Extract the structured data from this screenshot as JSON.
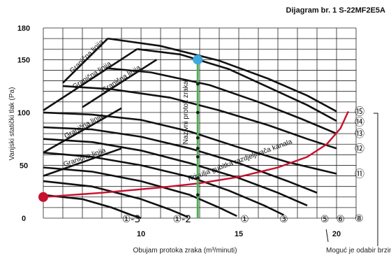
{
  "title": "Dijagram br. 1 S-22MF2E5A",
  "chart_data": {
    "type": "line",
    "xlabel": "Obujam protoka zraka (m³/minuti)",
    "ylabel": "Vanjski statički tlak (Pa)",
    "xlim": [
      5,
      21
    ],
    "ylim": [
      0,
      180
    ],
    "x_ticks": [
      "10",
      "15",
      "20"
    ],
    "y_ticks": [
      "0",
      "50",
      "100",
      "150",
      "180"
    ],
    "grid": true,
    "fan_curves": [
      {
        "label": "⑮",
        "points": [
          [
            8.3,
            170
          ],
          [
            11,
            163
          ],
          [
            14,
            149
          ],
          [
            16.5,
            132
          ],
          [
            18.5,
            116
          ],
          [
            20,
            101
          ]
        ]
      },
      {
        "label": "⑭",
        "points": [
          [
            9.8,
            160
          ],
          [
            12,
            155
          ],
          [
            14.5,
            141
          ],
          [
            16.5,
            124
          ],
          [
            18.5,
            107
          ],
          [
            20,
            92
          ]
        ]
      },
      {
        "label": "⑬",
        "points": [
          [
            8.2,
            142
          ],
          [
            10.5,
            138
          ],
          [
            13.5,
            126
          ],
          [
            16,
            110
          ],
          [
            18.2,
            94
          ],
          [
            20,
            80
          ]
        ]
      },
      {
        "label": "⑫",
        "points": [
          [
            6,
            125
          ],
          [
            8.5,
            122
          ],
          [
            11.5,
            114
          ],
          [
            14,
            102
          ],
          [
            16.5,
            88
          ],
          [
            18.5,
            75
          ],
          [
            20,
            66
          ]
        ]
      },
      {
        "label": "⑪",
        "points": [
          [
            5,
            100
          ],
          [
            7.5,
            98
          ],
          [
            10,
            93
          ],
          [
            12.5,
            82
          ],
          [
            15,
            67
          ],
          [
            17.5,
            53
          ],
          [
            20,
            42
          ]
        ]
      },
      {
        "label": "",
        "points": [
          [
            5,
            86
          ],
          [
            7.5,
            84
          ],
          [
            10,
            77
          ],
          [
            12.5,
            66
          ],
          [
            15,
            52
          ],
          [
            17.5,
            35
          ],
          [
            19,
            24
          ]
        ]
      },
      {
        "label": "",
        "points": [
          [
            5,
            75
          ],
          [
            7.5,
            72
          ],
          [
            10,
            64
          ],
          [
            12.5,
            52
          ],
          [
            15,
            38
          ],
          [
            17,
            24
          ],
          [
            18.5,
            12
          ]
        ]
      },
      {
        "label": "",
        "points": [
          [
            5,
            62
          ],
          [
            7.5,
            58
          ],
          [
            10,
            50
          ],
          [
            12.5,
            39
          ],
          [
            14.5,
            26
          ],
          [
            16.3,
            12
          ],
          [
            17.3,
            3
          ]
        ]
      },
      {
        "label": "",
        "points": [
          [
            5,
            48
          ],
          [
            7.5,
            44
          ],
          [
            10,
            35
          ],
          [
            12.5,
            22
          ],
          [
            14,
            10
          ],
          [
            14.9,
            2
          ]
        ]
      },
      {
        "label": "",
        "points": [
          [
            5,
            35
          ],
          [
            7.5,
            30
          ],
          [
            10,
            18
          ],
          [
            11.5,
            8
          ],
          [
            12.4,
            1
          ]
        ]
      },
      {
        "label": "",
        "points": [
          [
            5,
            22
          ],
          [
            7,
            18
          ],
          [
            8.5,
            10
          ],
          [
            9.5,
            3
          ],
          [
            10,
            0
          ]
        ]
      }
    ],
    "boundary_curves": [
      {
        "label": "Granična linija",
        "points": [
          [
            6,
            128
          ],
          [
            8.3,
            170
          ]
        ]
      },
      {
        "label": "Granična linija",
        "points": [
          [
            5,
            102
          ],
          [
            9.8,
            160
          ]
        ]
      },
      {
        "label": "Granična linija",
        "points": [
          [
            7,
            105
          ],
          [
            10.8,
            150
          ]
        ]
      },
      {
        "label": "Granična linija",
        "points": [
          [
            5,
            62
          ],
          [
            9,
            104
          ]
        ]
      },
      {
        "label": "Granična linija",
        "points": [
          [
            5,
            40
          ],
          [
            9,
            66
          ]
        ]
      }
    ],
    "duct_loss_curve": {
      "label": "Krivulja gubitka razdjeljivača kanala",
      "color": "#c8102e",
      "points": [
        [
          5,
          20
        ],
        [
          8,
          24
        ],
        [
          11,
          29
        ],
        [
          13,
          33
        ],
        [
          15,
          39
        ],
        [
          17,
          48
        ],
        [
          18.5,
          58
        ],
        [
          19.5,
          70
        ],
        [
          20.2,
          85
        ],
        [
          20.6,
          101
        ]
      ]
    },
    "rated_flow": {
      "label": "Nazivni protok zraka",
      "x": 12.9,
      "color": "#4caf50"
    },
    "rated_markers": [
      150,
      127,
      100,
      76,
      66,
      58,
      38,
      22
    ],
    "key_points": [
      {
        "x": 12.9,
        "y": 150,
        "color": "#3fa9e0"
      },
      {
        "x": 5,
        "y": 20,
        "color": "#c8102e"
      }
    ],
    "bottom_labels": [
      {
        "text": "①-3",
        "x": 9.5
      },
      {
        "text": "①-2",
        "x": 12.1
      },
      {
        "text": "①",
        "x": 15.3
      },
      {
        "text": "③",
        "x": 17.3
      },
      {
        "text": "⑤",
        "x": 19.4
      },
      {
        "text": "⑥",
        "x": 20.2
      }
    ],
    "right_labels": [
      {
        "text": "⑮",
        "y": 101
      },
      {
        "text": "⑭",
        "y": 91
      },
      {
        "text": "⑬",
        "y": 80
      },
      {
        "text": "⑫",
        "y": 66
      },
      {
        "text": "⑪",
        "y": 42
      },
      {
        "text": "⑧",
        "y": 0
      }
    ],
    "note": "Moguć je odabir brzine ventilatora"
  }
}
